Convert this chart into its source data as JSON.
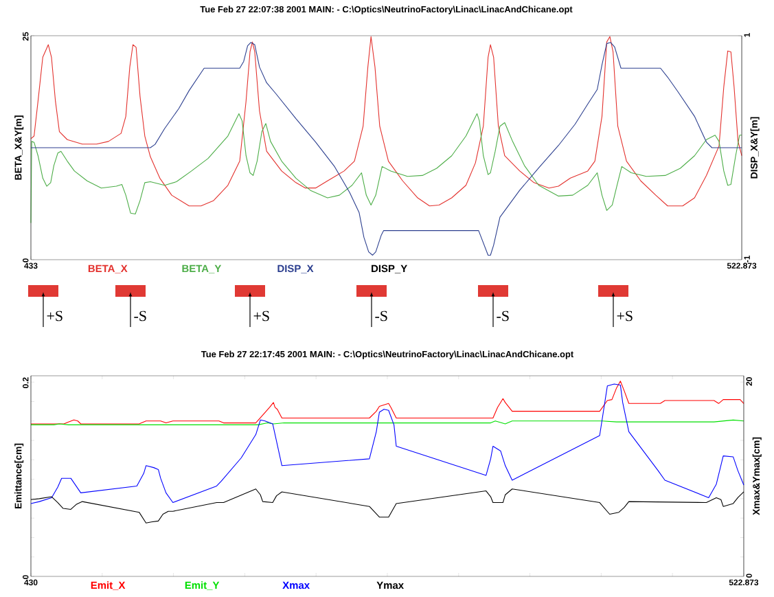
{
  "chart_data": [
    {
      "type": "line",
      "title": "Tue Feb 27 22:07:38 2001 MAIN: - C:\\Optics\\NeutrinoFactory\\Linac\\LinacAndChicane.opt",
      "ylabel": "BETA_X&Y[m]",
      "y2label": "DISP_X&Y[m]",
      "legend": "bottom",
      "xlim": [
        433,
        522.873
      ],
      "xticks": [
        433,
        522.873
      ],
      "ylim": [
        0,
        25
      ],
      "yticks": [
        0,
        25
      ],
      "y2lim": [
        -1,
        1
      ],
      "y2ticks": [
        -1,
        1
      ],
      "series": [
        {
          "name": "BETA_X",
          "color": "#e3312d",
          "x": [
            433.0,
            433.4,
            433.9,
            434.5,
            435.2,
            435.6,
            436.1,
            436.6,
            437.6,
            439.5,
            441.3,
            442.8,
            444.4,
            445.0,
            445.5,
            445.9,
            446.3,
            446.8,
            447.4,
            448.1,
            449.3,
            450.8,
            453.0,
            454.5,
            456.1,
            457.9,
            459.4,
            460.2,
            460.7,
            461.0,
            461.3,
            461.9,
            462.8,
            464.7,
            466.5,
            467.7,
            469.0,
            470.5,
            472.6,
            473.9,
            475.0,
            475.6,
            476.0,
            476.5,
            477.1,
            478.2,
            480.0,
            481.9,
            483.4,
            484.6,
            486.2,
            488.0,
            489.2,
            490.2,
            490.8,
            491.1,
            491.5,
            492.1,
            492.9,
            494.8,
            496.6,
            498.5,
            499.7,
            501.2,
            503.4,
            504.3,
            505.2,
            505.8,
            506.2,
            506.6,
            507.2,
            508.3,
            510.1,
            512.0,
            513.5,
            515.4,
            516.9,
            518.4,
            520.0,
            520.6,
            521.1,
            521.5,
            521.9,
            522.4,
            522.873
          ],
          "values": [
            13.5,
            13.8,
            17.7,
            22.6,
            24.0,
            22.6,
            17.7,
            14.3,
            13.4,
            12.9,
            12.9,
            13.2,
            14.1,
            16.0,
            21.5,
            24.0,
            23.7,
            18.2,
            13.8,
            11.5,
            9.1,
            7.2,
            6.0,
            6.0,
            6.6,
            8.3,
            11.0,
            17.7,
            23.2,
            24.3,
            23.2,
            16.6,
            12.1,
            9.9,
            8.6,
            8.0,
            8.0,
            8.8,
            9.9,
            11.0,
            14.9,
            21.5,
            24.9,
            21.5,
            14.9,
            11.0,
            8.8,
            6.9,
            6.0,
            6.1,
            6.9,
            8.3,
            10.8,
            14.9,
            22.6,
            24.0,
            22.6,
            14.9,
            11.6,
            9.9,
            8.6,
            8.0,
            8.2,
            9.1,
            9.9,
            11.0,
            16.0,
            24.3,
            24.9,
            23.2,
            14.9,
            11.0,
            8.8,
            7.2,
            6.0,
            6.0,
            6.9,
            9.4,
            12.7,
            19.3,
            23.3,
            23.2,
            19.3,
            13.2,
            11.6
          ]
        },
        {
          "name": "BETA_Y",
          "color": "#4cad47",
          "x": [
            433.0,
            433.1,
            433.4,
            433.9,
            434.5,
            435.0,
            435.5,
            435.9,
            436.4,
            436.8,
            437.6,
            438.5,
            440.1,
            441.9,
            443.8,
            444.5,
            445.0,
            445.6,
            446.2,
            446.8,
            447.4,
            448.1,
            449.9,
            451.4,
            453.3,
            455.4,
            457.9,
            459.3,
            459.7,
            460.2,
            460.7,
            461.1,
            461.6,
            462.2,
            462.7,
            463.3,
            464.7,
            466.5,
            468.4,
            470.5,
            472.0,
            473.6,
            474.8,
            475.4,
            476.0,
            476.6,
            477.4,
            478.5,
            480.6,
            482.5,
            484.3,
            486.2,
            488.0,
            489.4,
            489.7,
            490.2,
            490.8,
            491.1,
            491.7,
            492.3,
            492.9,
            493.9,
            495.4,
            497.2,
            499.7,
            501.5,
            503.4,
            504.6,
            505.2,
            505.8,
            506.5,
            507.1,
            507.7,
            508.9,
            510.8,
            513.2,
            515.1,
            516.9,
            518.4,
            519.5,
            520.0,
            520.6,
            521.1,
            521.5,
            522.1,
            522.6,
            522.873
          ],
          "values": [
            4.1,
            13.2,
            13.1,
            11.6,
            9.1,
            8.2,
            8.6,
            10.5,
            11.9,
            12.1,
            11.0,
            9.9,
            8.8,
            8.0,
            8.2,
            8.4,
            7.2,
            5.2,
            5.1,
            6.6,
            8.6,
            8.7,
            8.3,
            8.7,
            9.9,
            11.3,
            13.8,
            16.3,
            15.5,
            11.6,
            9.7,
            9.4,
            11.0,
            14.3,
            15.2,
            13.2,
            11.0,
            9.1,
            7.7,
            6.9,
            7.2,
            8.3,
            9.7,
            7.2,
            6.1,
            7.2,
            10.4,
            9.9,
            9.3,
            9.4,
            10.2,
            11.6,
            13.8,
            16.3,
            15.5,
            11.6,
            9.5,
            9.7,
            12.1,
            14.9,
            15.3,
            13.2,
            10.5,
            8.3,
            7.1,
            7.2,
            8.3,
            9.7,
            7.2,
            5.5,
            6.1,
            8.3,
            10.4,
            9.7,
            9.3,
            9.4,
            10.2,
            11.6,
            13.4,
            13.9,
            13.2,
            9.9,
            8.3,
            8.4,
            11.6,
            13.9,
            13.9
          ]
        },
        {
          "name": "DISP_X",
          "color": "#2c3f8f",
          "axis": "y2",
          "x": [
            433.0,
            448.1,
            448.7,
            449.9,
            451.7,
            453.0,
            454.9,
            459.4,
            459.9,
            460.4,
            460.8,
            461.3,
            461.9,
            462.8,
            464.0,
            466.5,
            469.0,
            471.4,
            473.3,
            474.5,
            475.1,
            475.7,
            476.2,
            476.6,
            477.3,
            477.6,
            489.6,
            490.2,
            490.8,
            491.1,
            491.5,
            492.3,
            494.8,
            497.2,
            499.7,
            501.8,
            503.4,
            504.6,
            505.2,
            505.8,
            506.3,
            506.8,
            507.6,
            512.6,
            513.5,
            514.8,
            516.9,
            518.4,
            519.1,
            522.873
          ],
          "values": [
            0,
            0,
            0.03,
            0.17,
            0.35,
            0.51,
            0.71,
            0.71,
            0.77,
            0.91,
            0.94,
            0.92,
            0.72,
            0.58,
            0.48,
            0.26,
            0.05,
            -0.17,
            -0.4,
            -0.58,
            -0.8,
            -0.93,
            -0.96,
            -0.93,
            -0.78,
            -0.74,
            -0.74,
            -0.85,
            -0.96,
            -0.96,
            -0.87,
            -0.62,
            -0.38,
            -0.18,
            0.02,
            0.21,
            0.39,
            0.52,
            0.74,
            0.93,
            0.94,
            0.9,
            0.71,
            0.71,
            0.63,
            0.5,
            0.28,
            0.05,
            0,
            0
          ]
        },
        {
          "name": "DISP_Y",
          "color": "#000000",
          "axis": "y2"
        }
      ],
      "annotations": [
        "+S",
        "-S",
        "+S",
        "-S",
        "-S",
        "+S"
      ]
    },
    {
      "type": "line",
      "title": "Tue Feb 27 22:17:45 2001 MAIN: - C:\\Optics\\NeutrinoFactory\\Linac\\LinacAndChicane.opt",
      "ylabel": "Emittance[cm]",
      "y2label": "Xmax&Ymax[cm]",
      "legend": "bottom",
      "xlim": [
        430,
        522.873
      ],
      "xticks": [
        430,
        {
          "value": 439.2873,
          "label": null
        },
        {
          "value": 448.5746,
          "label": null
        },
        {
          "value": 457.8619,
          "label": null
        },
        {
          "value": 467.1492,
          "label": null
        },
        {
          "value": 476.4365,
          "label": null
        },
        {
          "value": 485.7238,
          "label": null
        },
        {
          "value": 495.0111,
          "label": null
        },
        {
          "value": 504.2984,
          "label": null
        },
        {
          "value": 513.5857,
          "label": null
        },
        522.873
      ],
      "ylim": [
        0,
        0.2065
      ],
      "yticks": [
        0,
        {
          "value": 0.02,
          "label": null
        },
        {
          "value": 0.04,
          "label": null
        },
        {
          "value": 0.06,
          "label": null
        },
        {
          "value": 0.08,
          "label": null
        },
        {
          "value": 0.1,
          "label": null
        },
        {
          "value": 0.12,
          "label": null
        },
        {
          "value": 0.14,
          "label": null
        },
        {
          "value": 0.16,
          "label": null
        },
        {
          "value": 0.18,
          "label": null
        },
        0.2
      ],
      "y2lim": [
        0,
        20.65
      ],
      "y2ticks": [
        0,
        {
          "value": 2,
          "label": null
        },
        {
          "value": 4,
          "label": null
        },
        {
          "value": 6,
          "label": null
        },
        {
          "value": 8,
          "label": null
        },
        {
          "value": 10,
          "label": null
        },
        {
          "value": 12,
          "label": null
        },
        {
          "value": 14,
          "label": null
        },
        {
          "value": 16,
          "label": null
        },
        {
          "value": 18,
          "label": null
        },
        20
      ],
      "series": [
        {
          "name": "Emit_X",
          "color": "#ff0000",
          "x": [
            430.0,
            434.3,
            434.9,
            435.6,
            436.1,
            436.5,
            444.1,
            445.0,
            446.9,
            447.6,
            448.5,
            454.5,
            455.1,
            459.3,
            460.2,
            461.1,
            461.6,
            461.8,
            462.1,
            462.7,
            474.1,
            475.0,
            475.4,
            476.6,
            476.9,
            477.6,
            490.2,
            490.8,
            491.5,
            491.8,
            492.7,
            504.1,
            505.1,
            505.7,
            506.3,
            506.8,
            507.3,
            507.9,
            512.0,
            512.6,
            519.0,
            519.6,
            520.2,
            522.4,
            522.873
          ],
          "values": [
            0.157,
            0.157,
            0.159,
            0.161,
            0.16,
            0.157,
            0.157,
            0.16,
            0.16,
            0.158,
            0.16,
            0.16,
            0.158,
            0.158,
            0.166,
            0.174,
            0.179,
            0.174,
            0.172,
            0.163,
            0.163,
            0.17,
            0.175,
            0.178,
            0.174,
            0.163,
            0.163,
            0.174,
            0.183,
            0.179,
            0.17,
            0.17,
            0.181,
            0.182,
            0.194,
            0.201,
            0.191,
            0.178,
            0.178,
            0.181,
            0.181,
            0.178,
            0.182,
            0.182,
            0.178
          ]
        },
        {
          "name": "Emit_Y",
          "color": "#00e000",
          "x": [
            430.0,
            433.0,
            433.7,
            434.9,
            445.0,
            446.0,
            446.9,
            459.6,
            460.8,
            461.6,
            463.0,
            489.9,
            490.5,
            491.8,
            492.7,
            504.4,
            506.3,
            507.3,
            519.0,
            521.5,
            522.873
          ],
          "values": [
            0.156,
            0.156,
            0.157,
            0.156,
            0.156,
            0.156,
            0.156,
            0.156,
            0.158,
            0.157,
            0.158,
            0.158,
            0.16,
            0.157,
            0.16,
            0.16,
            0.159,
            0.159,
            0.159,
            0.161,
            0.16
          ]
        },
        {
          "name": "Xmax",
          "color": "#0000ff",
          "axis": "y2",
          "x": [
            430.0,
            431.1,
            432.7,
            433.5,
            434.0,
            435.2,
            436.5,
            443.8,
            444.7,
            445.0,
            446.0,
            446.6,
            446.9,
            447.6,
            448.5,
            454.2,
            454.8,
            457.4,
            459.3,
            459.9,
            460.5,
            461.5,
            462.7,
            474.1,
            475.0,
            475.4,
            476.0,
            476.6,
            477.3,
            477.6,
            489.3,
            489.9,
            490.2,
            491.2,
            491.8,
            492.7,
            504.1,
            505.1,
            506.0,
            506.8,
            507.1,
            507.9,
            511.7,
            512.6,
            518.3,
            519.3,
            520.2,
            521.5,
            522.1,
            522.873
          ],
          "values": [
            7.5,
            7.7,
            8.1,
            9.2,
            10.1,
            10.1,
            8.6,
            9.3,
            10.6,
            11.4,
            11.2,
            11.0,
            10.1,
            8.6,
            7.6,
            9.3,
            9.8,
            12.2,
            14.6,
            16.1,
            16.0,
            15.7,
            11.4,
            12.1,
            14.9,
            16.9,
            17.2,
            17.1,
            15.6,
            13.4,
            10.4,
            12.1,
            13.4,
            12.9,
            11.4,
            9.9,
            14.5,
            19.6,
            19.8,
            19.7,
            17.9,
            14.9,
            10.9,
            9.9,
            8.1,
            9.5,
            12.4,
            12.3,
            10.9,
            9.4
          ]
        },
        {
          "name": "Ymax",
          "color": "#000000",
          "axis": "y2",
          "x": [
            430.0,
            431.1,
            432.7,
            433.5,
            434.2,
            435.2,
            435.9,
            436.7,
            444.1,
            445.0,
            445.7,
            446.6,
            447.2,
            447.9,
            448.5,
            454.2,
            455.1,
            459.3,
            459.9,
            460.2,
            461.5,
            462.0,
            462.7,
            474.1,
            475.4,
            476.6,
            477.6,
            489.3,
            489.9,
            490.2,
            491.5,
            491.8,
            492.7,
            504.1,
            505.4,
            506.6,
            507.3,
            507.9,
            518.0,
            519.3,
            519.9,
            520.2,
            521.5,
            522.1,
            522.873
          ],
          "values": [
            7.9,
            8.0,
            8.2,
            7.6,
            7.0,
            6.9,
            7.4,
            7.7,
            6.6,
            5.5,
            5.6,
            5.7,
            6.4,
            6.7,
            6.7,
            7.6,
            7.6,
            9.0,
            8.4,
            7.7,
            7.6,
            8.3,
            8.7,
            7.2,
            6.1,
            6.1,
            7.5,
            8.8,
            8.2,
            7.6,
            7.6,
            8.4,
            9.0,
            7.6,
            6.4,
            6.6,
            7.1,
            7.7,
            7.6,
            8.1,
            7.9,
            7.2,
            7.5,
            8.1,
            8.7
          ]
        }
      ]
    }
  ]
}
